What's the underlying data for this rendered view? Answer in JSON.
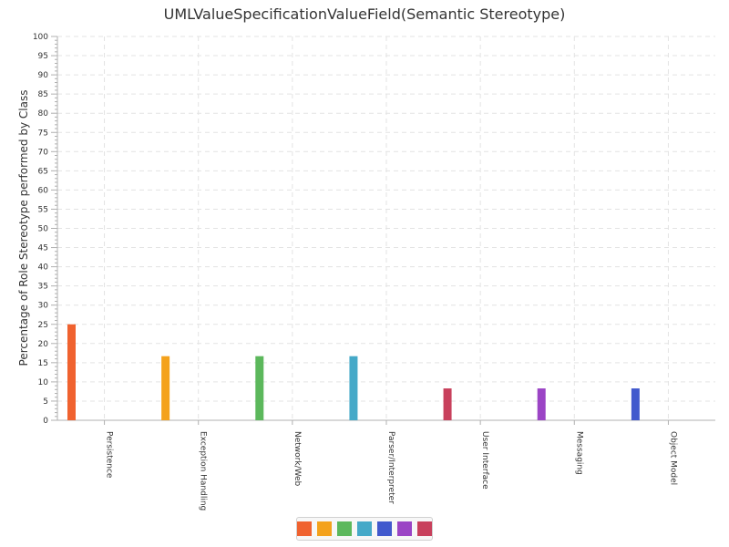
{
  "chart_data": {
    "type": "bar",
    "title": "UMLValueSpecificationValueField(Semantic Stereotype)",
    "xlabel": "",
    "ylabel": "Percentage of Role Stereotype performed by Class",
    "ylim": [
      0,
      100
    ],
    "yticks": [
      0,
      5,
      10,
      15,
      20,
      25,
      30,
      35,
      40,
      45,
      50,
      55,
      60,
      65,
      70,
      75,
      80,
      85,
      90,
      95,
      100
    ],
    "categories": [
      "Persistence",
      "Exception Handling",
      "Network/Web",
      "Parser/Interpreter",
      "User Interface",
      "Messaging",
      "Object Model"
    ],
    "values": [
      25,
      16.7,
      16.7,
      16.7,
      8.3,
      8.3,
      8.3
    ],
    "colors": [
      "#f0622f",
      "#f4a21c",
      "#5cb85c",
      "#45a9c8",
      "#c8405c",
      "#9b44c5",
      "#4159cd"
    ],
    "legend_colors": [
      "#f0622f",
      "#f4a21c",
      "#5cb85c",
      "#45a9c8",
      "#4159cd",
      "#9b44c5",
      "#c8405c"
    ],
    "grid": true,
    "legend_position": "bottom-center"
  }
}
